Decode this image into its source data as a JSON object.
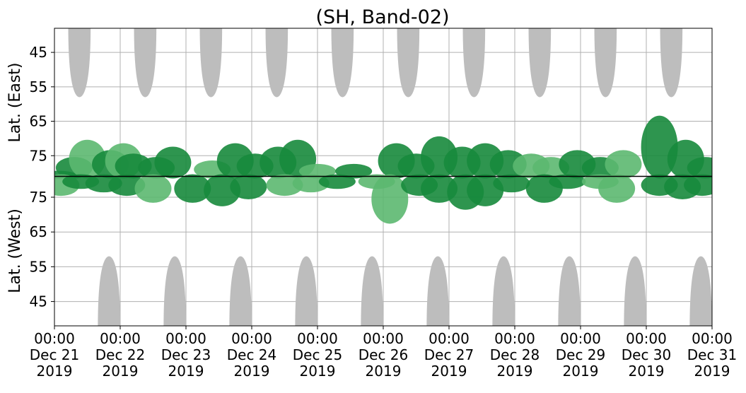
{
  "chart_data": {
    "type": "heatmap",
    "title": "(SH, Band-02)",
    "upper_panel": {
      "ylabel": "Lat. (East)",
      "yticks": [
        "45",
        "55",
        "65",
        "75"
      ],
      "yrange_top_to_bottom": [
        38,
        81
      ],
      "ytick_values": [
        45,
        55,
        65,
        75
      ]
    },
    "lower_panel": {
      "ylabel": "Lat. (West)",
      "yticks": [
        "75",
        "65",
        "55",
        "45"
      ],
      "yrange_top_to_bottom": [
        81,
        38
      ],
      "ytick_values": [
        75,
        65,
        55,
        45
      ]
    },
    "x_ticks": [
      {
        "time": "00:00",
        "date": "Dec 21",
        "year": "2019"
      },
      {
        "time": "00:00",
        "date": "Dec 22",
        "year": "2019"
      },
      {
        "time": "00:00",
        "date": "Dec 23",
        "year": "2019"
      },
      {
        "time": "00:00",
        "date": "Dec 24",
        "year": "2019"
      },
      {
        "time": "00:00",
        "date": "Dec 25",
        "year": "2019"
      },
      {
        "time": "00:00",
        "date": "Dec 26",
        "year": "2019"
      },
      {
        "time": "00:00",
        "date": "Dec 27",
        "year": "2019"
      },
      {
        "time": "00:00",
        "date": "Dec 28",
        "year": "2019"
      },
      {
        "time": "00:00",
        "date": "Dec 29",
        "year": "2019"
      },
      {
        "time": "00:00",
        "date": "Dec 30",
        "year": "2019"
      },
      {
        "time": "00:00",
        "date": "Dec 31",
        "year": "2019"
      }
    ],
    "xlim_days": [
      0,
      10
    ],
    "grid": true,
    "colors": {
      "strong": "#178a3c",
      "weak": "#5cb870",
      "daylight": "#bdbdbd",
      "divider": "#000000"
    },
    "daylight_upper": [
      {
        "center_day": 0.38,
        "half_width_day": 0.17,
        "lowest_lat": 58
      },
      {
        "center_day": 1.38,
        "half_width_day": 0.17,
        "lowest_lat": 58
      },
      {
        "center_day": 2.38,
        "half_width_day": 0.17,
        "lowest_lat": 58
      },
      {
        "center_day": 3.38,
        "half_width_day": 0.17,
        "lowest_lat": 58
      },
      {
        "center_day": 4.38,
        "half_width_day": 0.17,
        "lowest_lat": 58
      },
      {
        "center_day": 5.38,
        "half_width_day": 0.17,
        "lowest_lat": 58
      },
      {
        "center_day": 6.38,
        "half_width_day": 0.17,
        "lowest_lat": 58
      },
      {
        "center_day": 7.38,
        "half_width_day": 0.17,
        "lowest_lat": 58
      },
      {
        "center_day": 8.38,
        "half_width_day": 0.17,
        "lowest_lat": 58
      },
      {
        "center_day": 9.38,
        "half_width_day": 0.17,
        "lowest_lat": 58
      }
    ],
    "daylight_lower": [
      {
        "center_day": 0.83,
        "half_width_day": 0.17,
        "lowest_lat": 58
      },
      {
        "center_day": 1.83,
        "half_width_day": 0.17,
        "lowest_lat": 58
      },
      {
        "center_day": 2.83,
        "half_width_day": 0.17,
        "lowest_lat": 58
      },
      {
        "center_day": 3.83,
        "half_width_day": 0.17,
        "lowest_lat": 58
      },
      {
        "center_day": 4.83,
        "half_width_day": 0.17,
        "lowest_lat": 58
      },
      {
        "center_day": 5.83,
        "half_width_day": 0.17,
        "lowest_lat": 58
      },
      {
        "center_day": 6.83,
        "half_width_day": 0.17,
        "lowest_lat": 58
      },
      {
        "center_day": 7.83,
        "half_width_day": 0.17,
        "lowest_lat": 58
      },
      {
        "center_day": 8.83,
        "half_width_day": 0.17,
        "lowest_lat": 58
      },
      {
        "center_day": 9.83,
        "half_width_day": 0.17,
        "lowest_lat": 58
      }
    ],
    "activity_upper": [
      {
        "day": 0.05,
        "lat": 80,
        "level": "strong"
      },
      {
        "day": 0.3,
        "lat": 76,
        "level": "strong"
      },
      {
        "day": 0.5,
        "lat": 71,
        "level": "weak"
      },
      {
        "day": 0.85,
        "lat": 74,
        "level": "strong"
      },
      {
        "day": 1.05,
        "lat": 72,
        "level": "weak"
      },
      {
        "day": 1.2,
        "lat": 75,
        "level": "strong"
      },
      {
        "day": 1.55,
        "lat": 76,
        "level": "strong"
      },
      {
        "day": 1.8,
        "lat": 73,
        "level": "strong"
      },
      {
        "day": 2.4,
        "lat": 77,
        "level": "weak"
      },
      {
        "day": 2.75,
        "lat": 72,
        "level": "strong"
      },
      {
        "day": 3.05,
        "lat": 75,
        "level": "strong"
      },
      {
        "day": 3.4,
        "lat": 73,
        "level": "strong"
      },
      {
        "day": 3.7,
        "lat": 71,
        "level": "strong"
      },
      {
        "day": 4.0,
        "lat": 78,
        "level": "weak"
      },
      {
        "day": 4.55,
        "lat": 78,
        "level": "strong"
      },
      {
        "day": 5.2,
        "lat": 72,
        "level": "strong"
      },
      {
        "day": 5.5,
        "lat": 75,
        "level": "strong"
      },
      {
        "day": 5.85,
        "lat": 70,
        "level": "strong"
      },
      {
        "day": 6.2,
        "lat": 73,
        "level": "strong"
      },
      {
        "day": 6.55,
        "lat": 72,
        "level": "strong"
      },
      {
        "day": 6.9,
        "lat": 74,
        "level": "strong"
      },
      {
        "day": 7.25,
        "lat": 75,
        "level": "weak"
      },
      {
        "day": 7.55,
        "lat": 76,
        "level": "weak"
      },
      {
        "day": 7.95,
        "lat": 74,
        "level": "strong"
      },
      {
        "day": 8.3,
        "lat": 76,
        "level": "strong"
      },
      {
        "day": 8.65,
        "lat": 74,
        "level": "weak"
      },
      {
        "day": 9.2,
        "lat": 64,
        "level": "strong"
      },
      {
        "day": 9.6,
        "lat": 71,
        "level": "strong"
      },
      {
        "day": 9.9,
        "lat": 76,
        "level": "strong"
      }
    ],
    "activity_lower": [
      {
        "day": 0.1,
        "lat": 76,
        "level": "weak"
      },
      {
        "day": 0.4,
        "lat": 78,
        "level": "strong"
      },
      {
        "day": 0.75,
        "lat": 77,
        "level": "strong"
      },
      {
        "day": 1.1,
        "lat": 76,
        "level": "strong"
      },
      {
        "day": 1.5,
        "lat": 74,
        "level": "weak"
      },
      {
        "day": 2.1,
        "lat": 74,
        "level": "strong"
      },
      {
        "day": 2.55,
        "lat": 73,
        "level": "strong"
      },
      {
        "day": 2.95,
        "lat": 75,
        "level": "strong"
      },
      {
        "day": 3.5,
        "lat": 76,
        "level": "weak"
      },
      {
        "day": 3.9,
        "lat": 77,
        "level": "weak"
      },
      {
        "day": 4.3,
        "lat": 78,
        "level": "strong"
      },
      {
        "day": 4.9,
        "lat": 78,
        "level": "weak"
      },
      {
        "day": 5.1,
        "lat": 68,
        "level": "weak"
      },
      {
        "day": 5.55,
        "lat": 76,
        "level": "strong"
      },
      {
        "day": 5.85,
        "lat": 74,
        "level": "strong"
      },
      {
        "day": 6.25,
        "lat": 72,
        "level": "strong"
      },
      {
        "day": 6.55,
        "lat": 73,
        "level": "strong"
      },
      {
        "day": 6.95,
        "lat": 77,
        "level": "strong"
      },
      {
        "day": 7.45,
        "lat": 74,
        "level": "strong"
      },
      {
        "day": 7.8,
        "lat": 78,
        "level": "strong"
      },
      {
        "day": 8.3,
        "lat": 78,
        "level": "weak"
      },
      {
        "day": 8.55,
        "lat": 74,
        "level": "weak"
      },
      {
        "day": 9.2,
        "lat": 76,
        "level": "strong"
      },
      {
        "day": 9.55,
        "lat": 75,
        "level": "strong"
      },
      {
        "day": 9.85,
        "lat": 76,
        "level": "strong"
      }
    ]
  }
}
